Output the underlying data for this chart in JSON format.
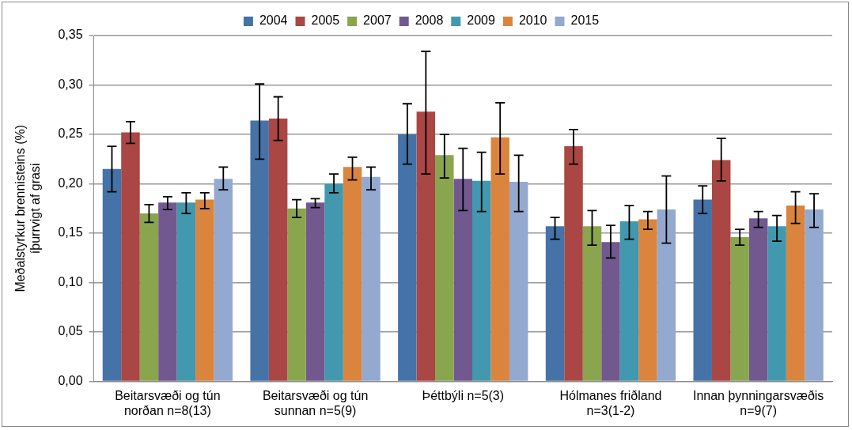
{
  "chart_data": {
    "type": "bar",
    "ylabel": "Meðalstyrkur brennisteins (%)\níþurrvigt af grasi",
    "categories": [
      "Beitarsvæði og tún norðan n=8(13)",
      "Beitarsvæði og tún sunnan n=5(9)",
      "Þéttbýli n=5(3)",
      "Hólmanes friðland n=3(1-2)",
      "Innan þynningarsvæðis n=9(7)"
    ],
    "series": [
      {
        "name": "2004",
        "color": "#4572a7",
        "values": [
          0.215,
          0.264,
          0.25,
          0.157,
          0.184
        ],
        "errors": [
          [
            0.192,
            0.238
          ],
          [
            0.225,
            0.301
          ],
          [
            0.22,
            0.281
          ],
          [
            0.144,
            0.166
          ],
          [
            0.17,
            0.198
          ]
        ]
      },
      {
        "name": "2005",
        "color": "#aa4643",
        "values": [
          0.252,
          0.266,
          0.273,
          0.238,
          0.224
        ],
        "errors": [
          [
            0.241,
            0.263
          ],
          [
            0.244,
            0.288
          ],
          [
            0.21,
            0.334
          ],
          [
            0.22,
            0.255
          ],
          [
            0.203,
            0.246
          ]
        ]
      },
      {
        "name": "2007",
        "color": "#89a54e",
        "values": [
          0.17,
          0.175,
          0.229,
          0.157,
          0.146
        ],
        "errors": [
          [
            0.161,
            0.179
          ],
          [
            0.166,
            0.184
          ],
          [
            0.206,
            0.25
          ],
          [
            0.138,
            0.173
          ],
          [
            0.138,
            0.154
          ]
        ]
      },
      {
        "name": "2008",
        "color": "#71588f",
        "values": [
          0.181,
          0.181,
          0.205,
          0.141,
          0.165
        ],
        "errors": [
          [
            0.174,
            0.187
          ],
          [
            0.176,
            0.185
          ],
          [
            0.173,
            0.236
          ],
          [
            0.125,
            0.158
          ],
          [
            0.156,
            0.172
          ]
        ]
      },
      {
        "name": "2009",
        "color": "#4198af",
        "values": [
          0.181,
          0.2,
          0.203,
          0.162,
          0.157
        ],
        "errors": [
          [
            0.17,
            0.191
          ],
          [
            0.191,
            0.21
          ],
          [
            0.172,
            0.232
          ],
          [
            0.144,
            0.178
          ],
          [
            0.142,
            0.168
          ]
        ]
      },
      {
        "name": "2010",
        "color": "#db843d",
        "values": [
          0.184,
          0.217,
          0.247,
          0.164,
          0.178
        ],
        "errors": [
          [
            0.175,
            0.191
          ],
          [
            0.204,
            0.227
          ],
          [
            0.21,
            0.282
          ],
          [
            0.154,
            0.172
          ],
          [
            0.16,
            0.192
          ]
        ]
      },
      {
        "name": "2015",
        "color": "#93a9cf",
        "values": [
          0.205,
          0.207,
          0.202,
          0.174,
          0.174
        ],
        "errors": [
          [
            0.194,
            0.217
          ],
          [
            0.194,
            0.217
          ],
          [
            0.172,
            0.229
          ],
          [
            0.14,
            0.208
          ],
          [
            0.156,
            0.19
          ]
        ]
      }
    ],
    "ylim": [
      0,
      0.35
    ],
    "yticks": [
      {
        "value": 0,
        "label": "0,00"
      },
      {
        "value": 0.05,
        "label": "0,05"
      },
      {
        "value": 0.1,
        "label": "0,10"
      },
      {
        "value": 0.15,
        "label": "0,15"
      },
      {
        "value": 0.2,
        "label": "0,20"
      },
      {
        "value": 0.25,
        "label": "0,25"
      },
      {
        "value": 0.3,
        "label": "0,30"
      },
      {
        "value": 0.35,
        "label": "0,35"
      }
    ],
    "grid": "y",
    "legend": "top"
  }
}
